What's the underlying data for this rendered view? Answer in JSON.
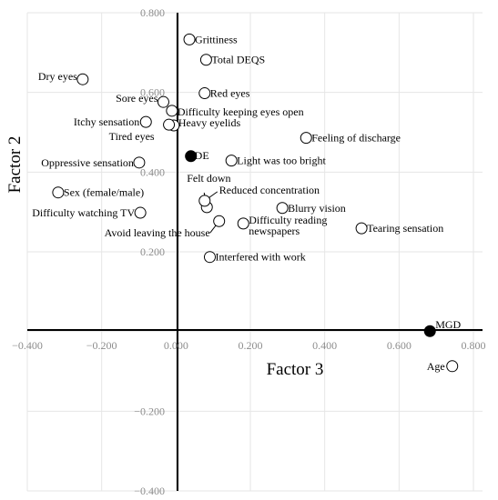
{
  "chart_data": {
    "type": "scatter",
    "xlabel": "Factor 3",
    "ylabel": "Factor 2",
    "xlim": [
      -0.4,
      0.8
    ],
    "ylim": [
      -0.4,
      0.8
    ],
    "xticks": [
      -0.4,
      -0.2,
      0.0,
      0.2,
      0.4,
      0.6,
      0.8
    ],
    "yticks": [
      -0.4,
      -0.2,
      0.0,
      0.2,
      0.4,
      0.6,
      0.8
    ],
    "xtick_labels": [
      "−0.400",
      "−0.200",
      "0.000",
      "0.200",
      "0.400",
      "0.600",
      "0.800"
    ],
    "ytick_labels": [
      "−0.400",
      "−0.200",
      "0.000",
      "0.200",
      "0.400",
      "0.600",
      "0.800"
    ],
    "grid": true,
    "points": [
      {
        "label": "Grittiness",
        "x": 0.036,
        "y": 0.733,
        "filled": false
      },
      {
        "label": "Total DEQS",
        "x": 0.081,
        "y": 0.682,
        "filled": false
      },
      {
        "label": "Dry eyes",
        "x": -0.251,
        "y": 0.633,
        "filled": false
      },
      {
        "label": "Red eyes",
        "x": 0.077,
        "y": 0.598,
        "filled": false
      },
      {
        "label": "Sore eyes",
        "x": -0.034,
        "y": 0.576,
        "filled": false
      },
      {
        "label": "Difficulty keeping eyes open",
        "x": -0.011,
        "y": 0.554,
        "filled": false
      },
      {
        "label": "Itchy sensation",
        "x": -0.081,
        "y": 0.526,
        "filled": false
      },
      {
        "label": "Heavy eyelids",
        "x": -0.006,
        "y": 0.517,
        "filled": false
      },
      {
        "label": "Tired eyes",
        "x": -0.019,
        "y": 0.519,
        "filled": false
      },
      {
        "label": "Feeling of discharge",
        "x": 0.35,
        "y": 0.486,
        "filled": false
      },
      {
        "label": "DE",
        "x": 0.04,
        "y": 0.44,
        "filled": true
      },
      {
        "label": "Light was too bright",
        "x": 0.149,
        "y": 0.429,
        "filled": false
      },
      {
        "label": "Oppressive sensation",
        "x": -0.099,
        "y": 0.424,
        "filled": false
      },
      {
        "label": "Sex (female/male)",
        "x": -0.317,
        "y": 0.349,
        "filled": false
      },
      {
        "label": "Felt down",
        "x": 0.083,
        "y": 0.312,
        "filled": false
      },
      {
        "label": "Reduced concentration",
        "x": 0.077,
        "y": 0.328,
        "filled": false
      },
      {
        "label": "Blurry vision",
        "x": 0.286,
        "y": 0.31,
        "filled": false
      },
      {
        "label": "Difficulty watching TV",
        "x": -0.096,
        "y": 0.298,
        "filled": false
      },
      {
        "label": "Difficulty reading newspapers",
        "x": 0.181,
        "y": 0.271,
        "filled": false
      },
      {
        "label": "Avoid leaving the house",
        "x": 0.116,
        "y": 0.277,
        "filled": false
      },
      {
        "label": "Tearing sensation",
        "x": 0.499,
        "y": 0.259,
        "filled": false
      },
      {
        "label": "Interfered with work",
        "x": 0.091,
        "y": 0.187,
        "filled": false
      },
      {
        "label": "MGD",
        "x": 0.683,
        "y": 0.001,
        "filled": true
      },
      {
        "label": "Age",
        "x": 0.743,
        "y": -0.087,
        "filled": false
      }
    ]
  }
}
